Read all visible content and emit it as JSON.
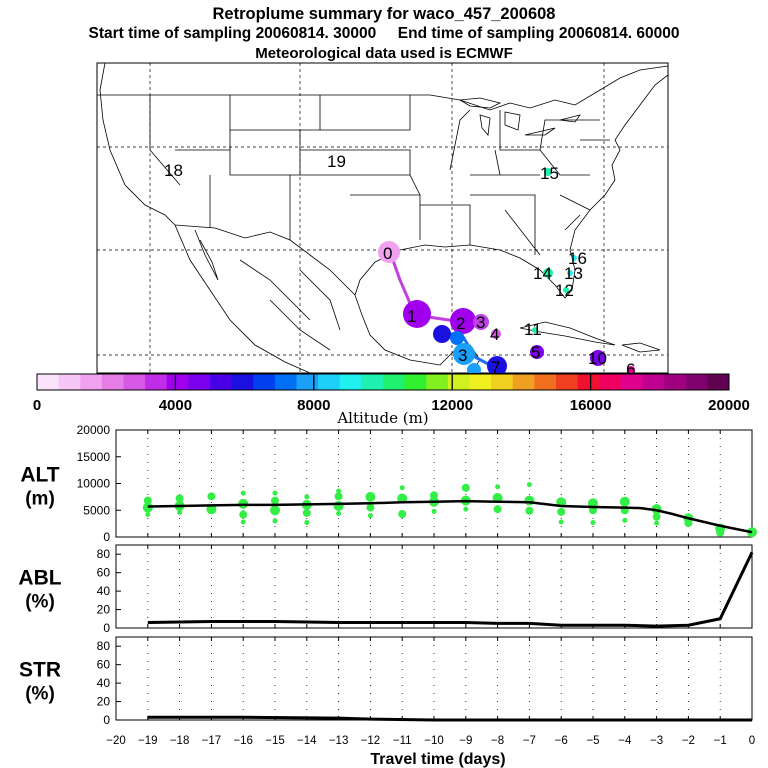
{
  "header": {
    "title": "Retroplume summary for waco_457_200608",
    "start_label": "Start time of sampling 20060814. 30000",
    "end_label": "End time of sampling 20060814. 60000",
    "met_label": "Meteorological data used is ECMWF"
  },
  "colorbar": {
    "label": "Altitude  (m)",
    "tick_labels": [
      "0",
      "4000",
      "8000",
      "12000",
      "16000",
      "20000"
    ],
    "range": [
      0,
      20000
    ],
    "colors": [
      "#fbe3fb",
      "#f6c6f6",
      "#f0a2f0",
      "#e67ce6",
      "#d858e6",
      "#c02ce8",
      "#a000ee",
      "#7a00ee",
      "#4a00e6",
      "#1a10e0",
      "#0040ee",
      "#0070f6",
      "#1aa0f8",
      "#1ed0f8",
      "#20f0f0",
      "#20f0b0",
      "#20f070",
      "#30f030",
      "#80f020",
      "#d0f020",
      "#f0f020",
      "#f0d020",
      "#f0a020",
      "#f07020",
      "#f04020",
      "#f01030",
      "#f00060",
      "#e00090",
      "#c00090",
      "#a00080",
      "#800070",
      "#600050"
    ]
  },
  "map": {
    "labels": [
      {
        "text": "18",
        "color": "#000000"
      },
      {
        "text": "19",
        "color": "#000000"
      },
      {
        "text": "15",
        "color": "#000000"
      },
      {
        "text": "16",
        "color": "#000000"
      },
      {
        "text": "13",
        "color": "#000000"
      },
      {
        "text": "12",
        "color": "#000000"
      },
      {
        "text": "14",
        "color": "#000000"
      },
      {
        "text": "11",
        "color": "#000000"
      },
      {
        "text": "0",
        "color": "#000000"
      },
      {
        "text": "1",
        "color": "#000000"
      },
      {
        "text": "2",
        "color": "#000000"
      },
      {
        "text": "3",
        "color": "#000000"
      },
      {
        "text": "4",
        "color": "#000000"
      },
      {
        "text": "5",
        "color": "#000000"
      },
      {
        "text": "3",
        "color": "#000000"
      },
      {
        "text": "7",
        "color": "#000000"
      },
      {
        "text": "10",
        "color": "#000000"
      },
      {
        "text": "6",
        "color": "#000000"
      }
    ]
  },
  "chart_data": [
    {
      "type": "scatter",
      "panel": "ALT",
      "ylabel_line1": "ALT",
      "ylabel_line2": "(m)",
      "ylim": [
        0,
        20000
      ],
      "yticks": [
        "0",
        "5000",
        "10000",
        "15000",
        "20000"
      ],
      "mean_line": {
        "x": [
          0,
          -0.5,
          -1,
          -1.5,
          -2,
          -2.5,
          -3,
          -3.5,
          -4,
          -5,
          -6,
          -7,
          -8,
          -9,
          -10,
          -11,
          -12,
          -13,
          -14,
          -15,
          -16,
          -17,
          -18,
          -19
        ],
        "y": [
          900,
          1500,
          2100,
          2800,
          3500,
          4300,
          5000,
          5400,
          5500,
          5600,
          5800,
          6500,
          6600,
          6700,
          6600,
          6500,
          6300,
          6200,
          6100,
          6000,
          6000,
          5900,
          5800,
          5700
        ]
      },
      "scatter": [
        {
          "x": -19,
          "y": [
            5500,
            6800,
            4200
          ]
        },
        {
          "x": -18,
          "y": [
            5800,
            7200,
            4600
          ]
        },
        {
          "x": -17,
          "y": [
            5200,
            7600
          ]
        },
        {
          "x": -16,
          "y": [
            6200,
            4200,
            2800,
            8200
          ]
        },
        {
          "x": -15,
          "y": [
            5000,
            6800,
            3000,
            8200
          ]
        },
        {
          "x": -14,
          "y": [
            6000,
            4500,
            2700,
            7500
          ]
        },
        {
          "x": -13,
          "y": [
            5800,
            7600,
            4400,
            8600
          ]
        },
        {
          "x": -12,
          "y": [
            7500,
            5500,
            4000
          ]
        },
        {
          "x": -11,
          "y": [
            7200,
            4300,
            9200
          ]
        },
        {
          "x": -10,
          "y": [
            6600,
            7800,
            4800
          ]
        },
        {
          "x": -9,
          "y": [
            6800,
            9200,
            5200
          ]
        },
        {
          "x": -8,
          "y": [
            7300,
            5200,
            9400
          ]
        },
        {
          "x": -7,
          "y": [
            6800,
            4900,
            9800
          ]
        },
        {
          "x": -6,
          "y": [
            6500,
            4700,
            2800
          ]
        },
        {
          "x": -5,
          "y": [
            6300,
            5000,
            2700
          ]
        },
        {
          "x": -4,
          "y": [
            6600,
            5000,
            3100
          ]
        },
        {
          "x": -3,
          "y": [
            5200,
            3800,
            2600
          ]
        },
        {
          "x": -2,
          "y": [
            3500,
            2600
          ]
        },
        {
          "x": -1,
          "y": [
            1600,
            800
          ]
        },
        {
          "x": 0,
          "y": [
            900
          ]
        }
      ]
    },
    {
      "type": "line",
      "panel": "ABL",
      "ylabel_line1": "ABL",
      "ylabel_line2": "(%)",
      "ylim": [
        0,
        90
      ],
      "yticks": [
        "0",
        "20",
        "40",
        "60",
        "80"
      ],
      "x": [
        -19,
        -17,
        -15,
        -13,
        -11,
        -9,
        -8,
        -7,
        -6,
        -5,
        -4,
        -3,
        -2,
        -1,
        0
      ],
      "y": [
        6,
        7,
        7,
        6,
        6,
        6,
        5,
        5,
        3,
        3,
        3,
        2,
        3,
        10,
        82
      ]
    },
    {
      "type": "line",
      "panel": "STR",
      "ylabel_line1": "STR",
      "ylabel_line2": "(%)",
      "ylim": [
        0,
        90
      ],
      "yticks": [
        "0",
        "20",
        "40",
        "60",
        "80"
      ],
      "x": [
        -19,
        -16,
        -13,
        -12,
        -10,
        -5,
        0
      ],
      "y": [
        3,
        3,
        2,
        1,
        0,
        0,
        0
      ]
    }
  ],
  "xaxis": {
    "label": "Travel time (days)",
    "ticks": [
      "−20",
      "−19",
      "−18",
      "−17",
      "−16",
      "−15",
      "−14",
      "−13",
      "−12",
      "−11",
      "−10",
      "−9",
      "−8",
      "−7",
      "−6",
      "−5",
      "−4",
      "−3",
      "−2",
      "−1",
      "0"
    ],
    "range": [
      -20,
      0
    ]
  }
}
